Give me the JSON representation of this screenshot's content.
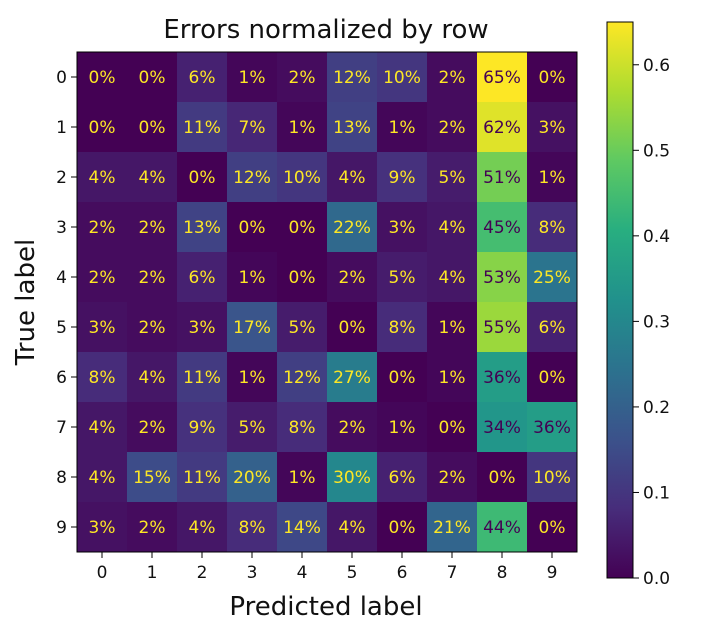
{
  "chart_data": {
    "type": "heatmap",
    "title": "Errors normalized by row",
    "xlabel": "Predicted label",
    "ylabel": "True label",
    "x_categories": [
      "0",
      "1",
      "2",
      "3",
      "4",
      "5",
      "6",
      "7",
      "8",
      "9"
    ],
    "y_categories": [
      "0",
      "1",
      "2",
      "3",
      "4",
      "5",
      "6",
      "7",
      "8",
      "9"
    ],
    "values": [
      [
        0.0,
        0.0,
        0.06,
        0.01,
        0.02,
        0.12,
        0.1,
        0.02,
        0.65,
        0.0
      ],
      [
        0.0,
        0.0,
        0.11,
        0.07,
        0.01,
        0.13,
        0.01,
        0.02,
        0.62,
        0.03
      ],
      [
        0.04,
        0.04,
        0.0,
        0.12,
        0.1,
        0.04,
        0.09,
        0.05,
        0.51,
        0.01
      ],
      [
        0.02,
        0.02,
        0.13,
        0.0,
        0.0,
        0.22,
        0.03,
        0.04,
        0.45,
        0.08
      ],
      [
        0.02,
        0.02,
        0.06,
        0.01,
        0.0,
        0.02,
        0.05,
        0.04,
        0.53,
        0.25
      ],
      [
        0.03,
        0.02,
        0.03,
        0.17,
        0.05,
        0.0,
        0.08,
        0.01,
        0.55,
        0.06
      ],
      [
        0.08,
        0.04,
        0.11,
        0.01,
        0.12,
        0.27,
        0.0,
        0.01,
        0.36,
        0.0
      ],
      [
        0.04,
        0.02,
        0.09,
        0.05,
        0.08,
        0.02,
        0.01,
        0.0,
        0.34,
        0.36
      ],
      [
        0.04,
        0.15,
        0.11,
        0.2,
        0.01,
        0.3,
        0.06,
        0.02,
        0.0,
        0.1
      ],
      [
        0.03,
        0.02,
        0.04,
        0.08,
        0.14,
        0.04,
        0.0,
        0.21,
        0.44,
        0.0
      ]
    ],
    "cell_labels": [
      [
        "0%",
        "0%",
        "6%",
        "1%",
        "2%",
        "12%",
        "10%",
        "2%",
        "65%",
        "0%"
      ],
      [
        "0%",
        "0%",
        "11%",
        "7%",
        "1%",
        "13%",
        "1%",
        "2%",
        "62%",
        "3%"
      ],
      [
        "4%",
        "4%",
        "0%",
        "12%",
        "10%",
        "4%",
        "9%",
        "5%",
        "51%",
        "1%"
      ],
      [
        "2%",
        "2%",
        "13%",
        "0%",
        "0%",
        "22%",
        "3%",
        "4%",
        "45%",
        "8%"
      ],
      [
        "2%",
        "2%",
        "6%",
        "1%",
        "0%",
        "2%",
        "5%",
        "4%",
        "53%",
        "25%"
      ],
      [
        "3%",
        "2%",
        "3%",
        "17%",
        "5%",
        "0%",
        "8%",
        "1%",
        "55%",
        "6%"
      ],
      [
        "8%",
        "4%",
        "11%",
        "1%",
        "12%",
        "27%",
        "0%",
        "1%",
        "36%",
        "0%"
      ],
      [
        "4%",
        "2%",
        "9%",
        "5%",
        "8%",
        "2%",
        "1%",
        "0%",
        "34%",
        "36%"
      ],
      [
        "4%",
        "15%",
        "11%",
        "20%",
        "1%",
        "30%",
        "6%",
        "2%",
        "0%",
        "10%"
      ],
      [
        "3%",
        "2%",
        "4%",
        "8%",
        "14%",
        "4%",
        "0%",
        "21%",
        "44%",
        "0%"
      ]
    ],
    "colormap": "viridis",
    "colorbar": {
      "range": [
        0.0,
        0.65
      ],
      "ticks": [
        0.0,
        0.1,
        0.2,
        0.3,
        0.4,
        0.5,
        0.6
      ],
      "tick_labels": [
        "0.0",
        "0.1",
        "0.2",
        "0.3",
        "0.4",
        "0.5",
        "0.6"
      ]
    },
    "text_colors": {
      "on_dark": "#fde725",
      "on_light": "#440154"
    }
  }
}
